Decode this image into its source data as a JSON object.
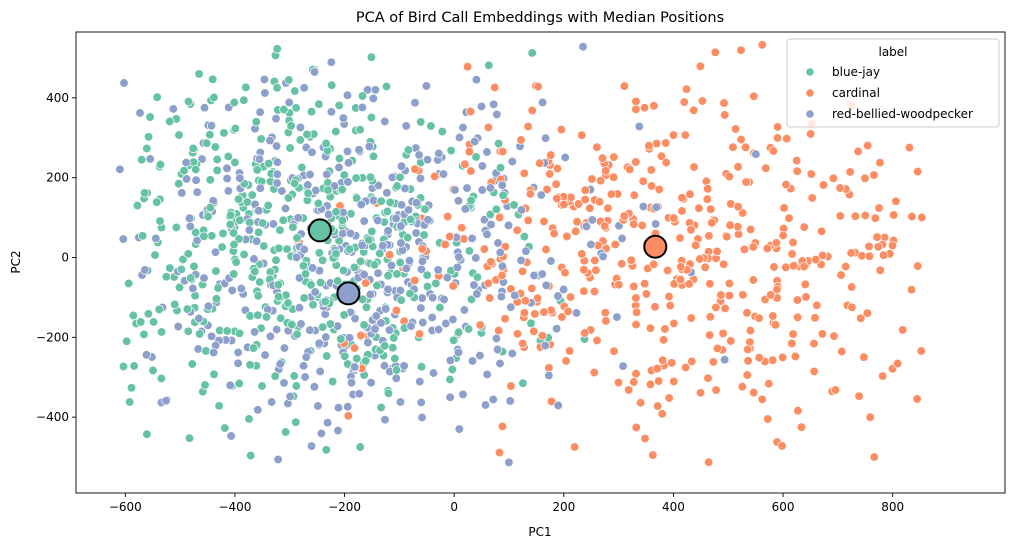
{
  "chart_data": {
    "type": "scatter",
    "title": "PCA of Bird Call Embeddings with Median Positions",
    "xlabel": "PC1",
    "ylabel": "PC2",
    "xlim": [
      -690,
      1005
    ],
    "ylim": [
      -590,
      565
    ],
    "xticks": [
      -600,
      -400,
      -200,
      0,
      200,
      400,
      600,
      800
    ],
    "yticks": [
      -400,
      -200,
      0,
      200,
      400
    ],
    "grid": false,
    "legend": {
      "title": "label",
      "placement": "top-right",
      "entries": [
        "blue-jay",
        "cardinal",
        "red-bellied-woodpecker"
      ]
    },
    "series": [
      {
        "name": "blue-jay",
        "color": "#66c2a5",
        "n_points": 500,
        "spread_center": [
          -270,
          30
        ],
        "spread_sd": [
          190,
          230
        ],
        "median": [
          -245,
          68
        ]
      },
      {
        "name": "cardinal",
        "color": "#fc8d62",
        "n_points": 500,
        "spread_center": [
          400,
          0
        ],
        "spread_sd": [
          260,
          210
        ],
        "median": [
          367,
          27
        ]
      },
      {
        "name": "red-bellied-woodpecker",
        "color": "#8da0cb",
        "n_points": 500,
        "spread_center": [
          -180,
          -20
        ],
        "spread_sd": [
          200,
          230
        ],
        "median": [
          -193,
          -90
        ]
      }
    ]
  }
}
